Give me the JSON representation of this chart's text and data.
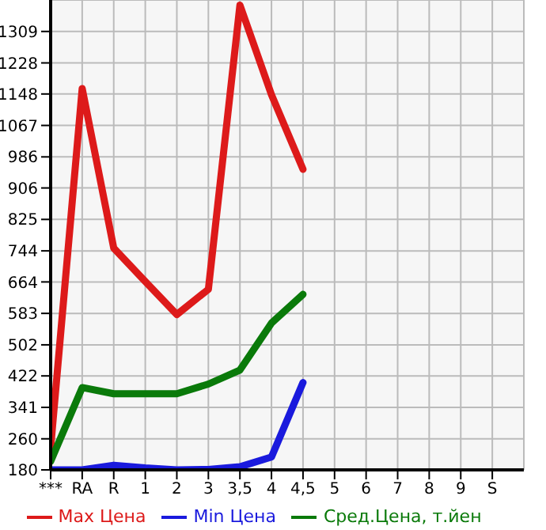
{
  "chart_data": {
    "type": "line",
    "categories": [
      "***",
      "RA",
      "R",
      "1",
      "2",
      "3",
      "3,5",
      "4",
      "4,5",
      "5",
      "6",
      "7",
      "8",
      "9",
      "S"
    ],
    "series": [
      {
        "name": "Max Цена",
        "color": "#dd1a1a",
        "values": [
          237,
          1162,
          751,
          665,
          580,
          645,
          1377,
          1146,
          954,
          null,
          null,
          null,
          null,
          null,
          null
        ]
      },
      {
        "name": "Min Цена",
        "color": "#1a1add",
        "values": [
          180,
          180,
          192,
          185,
          180,
          181,
          188,
          213,
          405,
          null,
          null,
          null,
          null,
          null,
          null
        ]
      },
      {
        "name": "Сред.Цена, т.йен",
        "color": "#0a7a0a",
        "values": [
          202,
          392,
          376,
          376,
          376,
          401,
          437,
          558,
          632,
          null,
          null,
          null,
          null,
          null,
          null
        ]
      }
    ],
    "ylim": [
      180,
      1390
    ],
    "yticks": [
      180,
      260,
      341,
      422,
      502,
      583,
      664,
      744,
      825,
      906,
      986,
      1067,
      1148,
      1228,
      1309
    ],
    "grid": true,
    "legend": "bottom",
    "marker": "none",
    "line_style": "solid"
  }
}
